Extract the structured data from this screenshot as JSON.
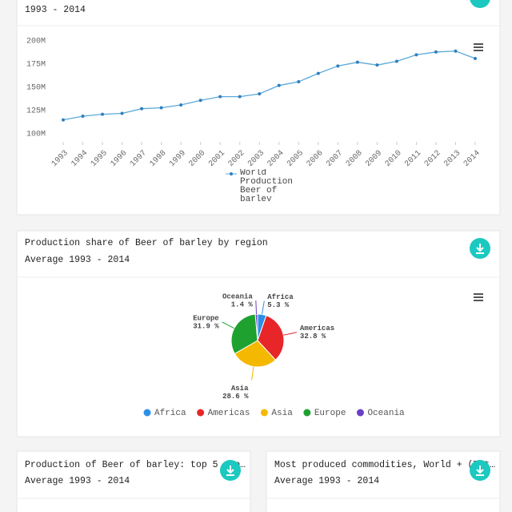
{
  "cards": [
    {
      "subtitle": "1993 - 2014"
    },
    {
      "title": "Production share of Beer of barley by region",
      "subtitle": "Average 1993 - 2014"
    },
    {
      "title": "Production of Beer of barley: top 5 pro…",
      "subtitle": "Average 1993 - 2014"
    },
    {
      "title": "Most produced commodities, World + (Tot…",
      "subtitle": "Average 1993 - 2014"
    }
  ],
  "chart_data": [
    {
      "type": "line",
      "categories": [
        "1993",
        "1994",
        "1995",
        "1996",
        "1997",
        "1998",
        "1999",
        "2000",
        "2001",
        "2002",
        "2003",
        "2004",
        "2005",
        "2006",
        "2007",
        "2008",
        "2009",
        "2010",
        "2011",
        "2012",
        "2013",
        "2014"
      ],
      "series": [
        {
          "name": "World Production Beer of barley",
          "color": "#5aa9d8",
          "values": [
            115,
            119,
            121,
            122,
            127,
            128,
            131,
            136,
            140,
            140,
            143,
            152,
            156,
            165,
            173,
            177,
            174,
            178,
            185,
            188,
            189,
            181
          ]
        }
      ],
      "ylim": [
        100,
        200
      ],
      "yticks": [
        {
          "value": 100,
          "label": "100M"
        },
        {
          "value": 125,
          "label": "125M"
        },
        {
          "value": 150,
          "label": "150M"
        },
        {
          "value": 175,
          "label": "175M"
        },
        {
          "value": 200,
          "label": "200M"
        }
      ],
      "grid": false
    },
    {
      "type": "pie",
      "categories": [
        "Africa",
        "Americas",
        "Asia",
        "Europe",
        "Oceania"
      ],
      "values": [
        5.3,
        32.8,
        28.6,
        31.9,
        1.4
      ],
      "value_labels": [
        "5.3 %",
        "32.8 %",
        "28.6 %",
        "31.9 %",
        "1.4 %"
      ],
      "colors": [
        "#2b8fe8",
        "#e8262a",
        "#f5b800",
        "#1fa12f",
        "#6a3fc8"
      ]
    }
  ]
}
